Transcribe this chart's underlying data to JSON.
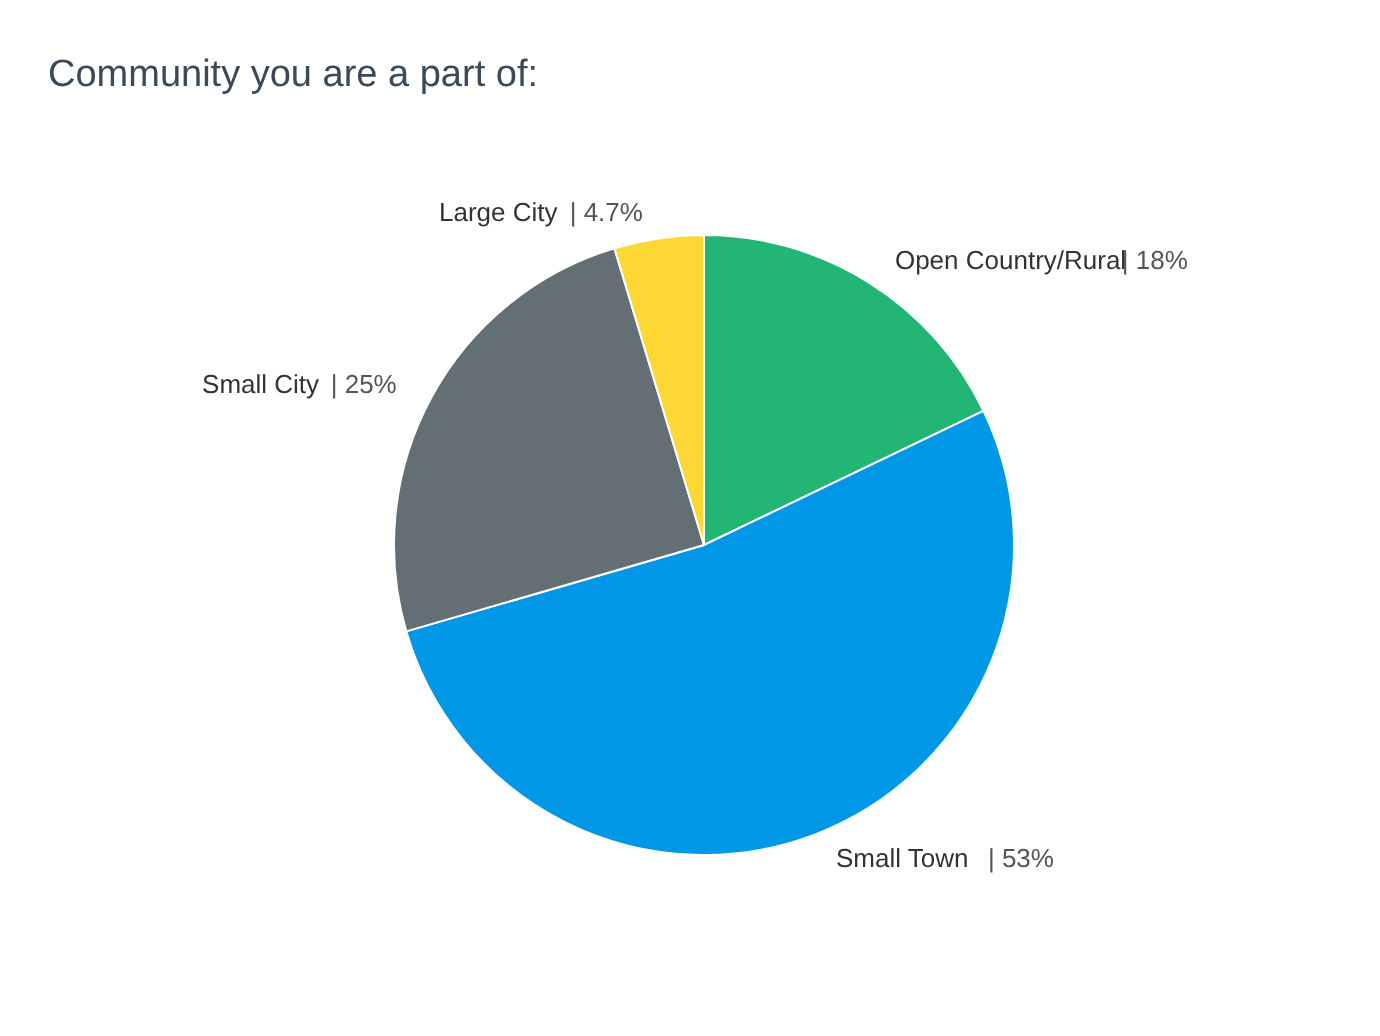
{
  "chart_data": {
    "type": "pie",
    "title": "Community you are a part of:",
    "categories": [
      "Open Country/Rural",
      "Small Town",
      "Small City",
      "Large City"
    ],
    "values": [
      18,
      53,
      25,
      4.7
    ],
    "colors": [
      "#22b573",
      "#0097e6",
      "#636e75",
      "#fdd835"
    ],
    "value_labels": [
      "| 18%",
      "| 53%",
      "| 25%",
      "| 4.7%"
    ],
    "legend": false
  }
}
